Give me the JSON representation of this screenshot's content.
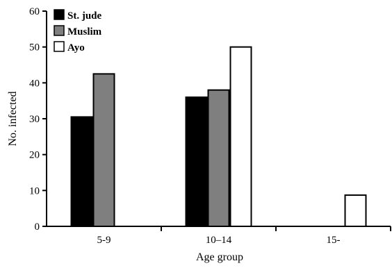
{
  "chart_data": {
    "type": "bar",
    "title": "",
    "xlabel": "Age group",
    "ylabel": "No. infected",
    "ylim": [
      0,
      60
    ],
    "yticks": [
      0,
      10,
      20,
      30,
      40,
      50,
      60
    ],
    "categories": [
      "5-9",
      "10–14",
      "15-"
    ],
    "series": [
      {
        "name": "St. jude",
        "color": "#000000",
        "values": [
          30.5,
          36,
          null
        ]
      },
      {
        "name": "Muslim",
        "color": "#7f7f7f",
        "values": [
          42.5,
          38,
          null
        ]
      },
      {
        "name": "Ayo",
        "color": "#ffffff",
        "values": [
          null,
          50,
          8.7
        ]
      }
    ],
    "legend": "top-left",
    "grid": false
  }
}
